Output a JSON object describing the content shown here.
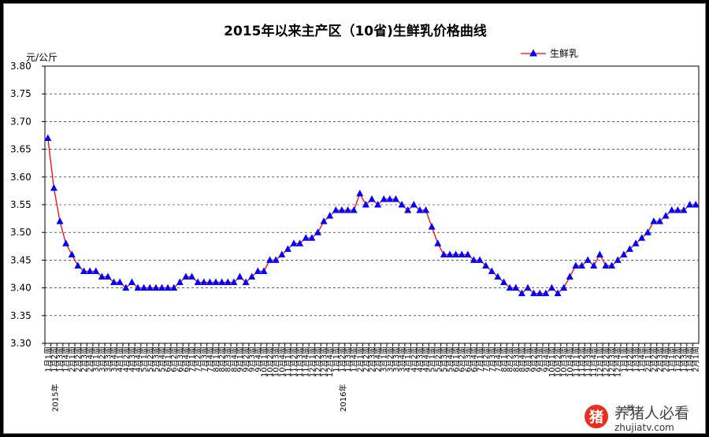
{
  "chart_data": {
    "type": "line",
    "title": "2015年以来主产区（10省)生鲜乳价格曲线",
    "ylabel": "元/公斤",
    "xlabel": "",
    "ylim": [
      3.3,
      3.8
    ],
    "yticks": [
      "3.30",
      "3.35",
      "3.40",
      "3.45",
      "3.50",
      "3.55",
      "3.60",
      "3.65",
      "3.70",
      "3.75",
      "3.80"
    ],
    "grid": true,
    "legend_position": "top-right",
    "series": [
      {
        "name": "生鲜乳",
        "color": "#FF0000",
        "marker_color": "#0000FF",
        "values": [
          3.67,
          3.58,
          3.52,
          3.48,
          3.46,
          3.44,
          3.43,
          3.43,
          3.43,
          3.42,
          3.42,
          3.41,
          3.41,
          3.4,
          3.41,
          3.4,
          3.4,
          3.4,
          3.4,
          3.4,
          3.4,
          3.4,
          3.41,
          3.42,
          3.42,
          3.41,
          3.41,
          3.41,
          3.41,
          3.41,
          3.41,
          3.41,
          3.42,
          3.41,
          3.42,
          3.43,
          3.43,
          3.45,
          3.45,
          3.46,
          3.47,
          3.48,
          3.48,
          3.49,
          3.49,
          3.5,
          3.52,
          3.53,
          3.54,
          3.54,
          3.54,
          3.54,
          3.57,
          3.55,
          3.56,
          3.55,
          3.56,
          3.56,
          3.56,
          3.55,
          3.54,
          3.55,
          3.54,
          3.54,
          3.51,
          3.48,
          3.46,
          3.46,
          3.46,
          3.46,
          3.46,
          3.45,
          3.45,
          3.44,
          3.43,
          3.42,
          3.41,
          3.4,
          3.4,
          3.39,
          3.4,
          3.39,
          3.39,
          3.39,
          3.4,
          3.39,
          3.4,
          3.42,
          3.44,
          3.44,
          3.45,
          3.44,
          3.46,
          3.44,
          3.44,
          3.45,
          3.46,
          3.47,
          3.48,
          3.49,
          3.5,
          3.52,
          3.52,
          3.53,
          3.54,
          3.54,
          3.54,
          3.55,
          3.55
        ]
      }
    ],
    "x_labels": [
      "2015年1月1周",
      "2016年1月1周"
    ],
    "x_tick_labels": [
      "1月1周",
      "1月2周",
      "1月3周",
      "1月4周",
      "2月1周",
      "2月2周",
      "2月3周",
      "2月4周",
      "3月1周",
      "3月2周",
      "3月3周",
      "3月4周",
      "4月1周",
      "4月2周",
      "4月3周",
      "4月4周",
      "5月1周",
      "5月2周",
      "5月3周",
      "5月4周",
      "6月1周",
      "6月2周",
      "6月3周",
      "6月4周",
      "7月1周",
      "7月2周",
      "7月3周",
      "7月4周",
      "8月1周",
      "8月2周",
      "8月3周",
      "8月4周",
      "9月1周",
      "9月2周",
      "9月3周",
      "9月4周",
      "10月1周",
      "10月2周",
      "10月3周",
      "10月4周",
      "11月1周",
      "11月2周",
      "11月3周",
      "11月4周",
      "12月1周",
      "12月2周",
      "12月3周",
      "12月4周",
      "1月1周",
      "1月2周",
      "1月3周",
      "1月4周",
      "2月1周",
      "2月2周",
      "2月3周",
      "2月4周",
      "3月1周",
      "3月2周",
      "3月3周",
      "3月4周",
      "4月1周",
      "4月2周",
      "4月3周",
      "4月4周",
      "5月1周",
      "5月2周",
      "5月3周",
      "5月4周",
      "6月1周",
      "6月2周",
      "6月3周",
      "6月4周",
      "7月1周",
      "7月2周",
      "7月3周",
      "7月4周",
      "8月1周",
      "8月2周",
      "8月3周",
      "8月4周",
      "9月1周",
      "9月2周",
      "9月3周",
      "9月4周",
      "10月1周",
      "10月2周",
      "10月3周",
      "10月4周",
      "11月1周",
      "11月2周",
      "11月3周",
      "11月4周",
      "12月1周",
      "12月2周",
      "12月3周",
      "12月4周",
      "1月1周",
      "1月2周",
      "1月3周",
      "1月4周",
      "2月1周",
      "2月2周",
      "2月3周",
      "2月4周",
      "1月1周",
      "1月2周",
      "1月3周",
      "1月4周",
      "2月1周"
    ],
    "year_labels": [
      {
        "index": 0,
        "text": "2015年"
      },
      {
        "index": 48,
        "text": "2016年"
      },
      {
        "index": 96,
        "text": "年"
      }
    ]
  },
  "watermark": {
    "logo_char": "猪",
    "text": "养猪人必看",
    "url": "zhujiatv.com"
  }
}
